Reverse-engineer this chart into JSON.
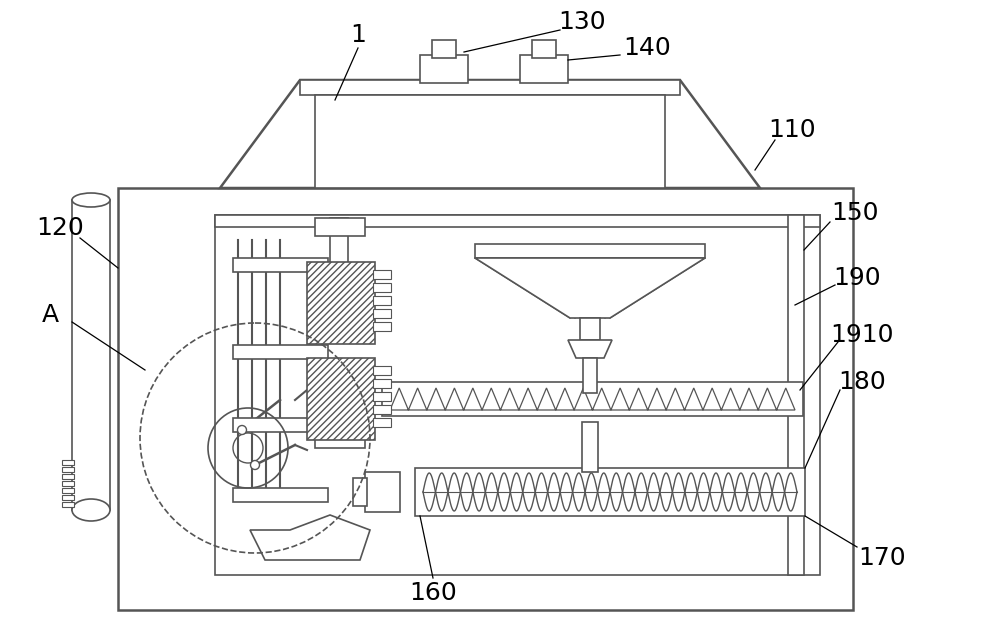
{
  "bg_color": "#ffffff",
  "line_color": "#555555",
  "label_color": "#000000",
  "label_fontsize": 18,
  "figsize": [
    10.0,
    6.42
  ],
  "dpi": 100
}
